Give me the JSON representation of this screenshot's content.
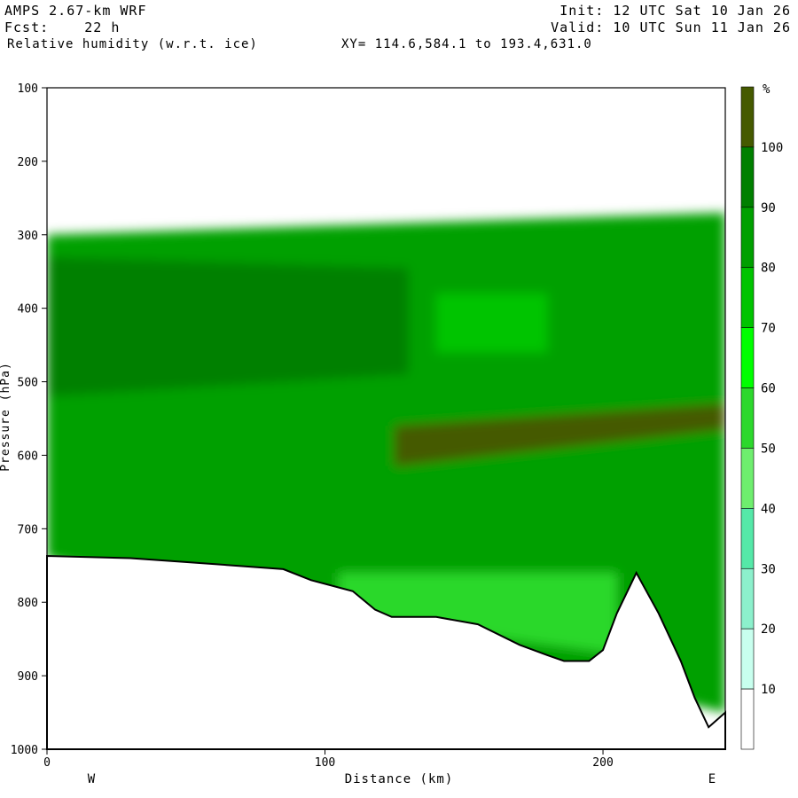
{
  "header": {
    "model": "AMPS 2.67-km WRF",
    "fcst": "Fcst:    22 h",
    "field": "Relative humidity (w.r.t. ice)",
    "init": "Init: 12 UTC Sat 10 Jan 26",
    "valid": "Valid: 10 UTC Sun 11 Jan 26",
    "xy": "XY= 114.6,584.1 to 193.4,631.0"
  },
  "chart_data": {
    "type": "heatmap",
    "title": "Relative humidity (w.r.t. ice)",
    "xlabel": "Distance (km)",
    "ylabel": "Pressure (hPa)",
    "xlim": [
      0,
      244
    ],
    "ylim": [
      1000,
      100
    ],
    "x_ticks": [
      0,
      100,
      200
    ],
    "y_ticks": [
      100,
      200,
      300,
      400,
      500,
      600,
      700,
      800,
      900,
      1000
    ],
    "x_end_labels": {
      "left": "W",
      "right": "E"
    },
    "colorbar": {
      "unit": "%",
      "levels": [
        10,
        20,
        30,
        40,
        50,
        60,
        70,
        80,
        90,
        100
      ],
      "colors": [
        "#ffffff",
        "#ffffff",
        "#ffffff",
        "#c8ffee",
        "#8cf0cc",
        "#55e8a8",
        "#6eee6e",
        "#2cd82c",
        "#00ff00",
        "#00c400",
        "#00a000",
        "#008000",
        "#455a00"
      ]
    },
    "terrain_profile": {
      "distance_km": [
        0,
        30,
        60,
        85,
        95,
        110,
        118,
        124,
        140,
        155,
        170,
        180,
        186,
        195,
        200,
        205,
        212,
        220,
        228,
        233,
        238,
        241,
        244
      ],
      "surface_hpa": [
        737,
        740,
        748,
        755,
        770,
        785,
        810,
        820,
        820,
        830,
        858,
        872,
        880,
        880,
        865,
        815,
        760,
        815,
        880,
        930,
        970,
        960,
        950
      ]
    },
    "humidity_regions": [
      {
        "rh_pct": 80,
        "x": [
          0,
          244
        ],
        "p_top": [
          300,
          270
        ],
        "p_bottom": [
          740,
          950
        ]
      },
      {
        "rh_pct": 90,
        "x": [
          0,
          130
        ],
        "p_top": [
          330,
          345
        ],
        "p_bottom": [
          520,
          490
        ]
      },
      {
        "rh_pct": 100,
        "x": [
          125,
          244
        ],
        "p_top": [
          560,
          530
        ],
        "p_bottom": [
          615,
          565
        ]
      },
      {
        "rh_pct": 50,
        "x": [
          105,
          205
        ],
        "p_top": [
          760,
          760
        ],
        "p_bottom": [
          820,
          870
        ]
      },
      {
        "rh_pct": 70,
        "x": [
          140,
          180
        ],
        "p_top": [
          380,
          380
        ],
        "p_bottom": [
          460,
          460
        ]
      }
    ]
  }
}
